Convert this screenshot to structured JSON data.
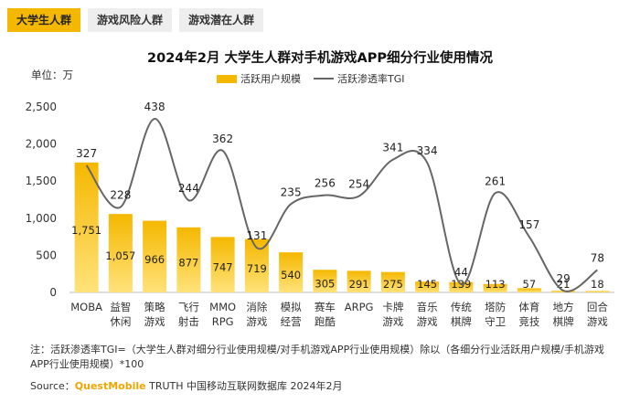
{
  "tabs": [
    {
      "label": "大学生人群",
      "active": true
    },
    {
      "label": "游戏风险人群",
      "active": false
    },
    {
      "label": "游戏潜在人群",
      "active": false
    }
  ],
  "chart_data": {
    "type": "bar",
    "title": "2024年2月 大学生人群对手机游戏APP细分行业使用情况",
    "unit_label": "单位：万",
    "categories": [
      "MOBA",
      "益智\n休闲",
      "策略\n游戏",
      "飞行\n射击",
      "MMO\nRPG",
      "消除\n游戏",
      "模拟\n经营",
      "赛车\n跑酷",
      "ARPG",
      "卡牌\n游戏",
      "音乐\n游戏",
      "传统\n棋牌",
      "塔防\n守卫",
      "体育\n竞技",
      "地方\n棋牌",
      "回合\n游戏"
    ],
    "series": [
      {
        "name": "活跃用户规模",
        "type": "bar",
        "color": "#f5b800",
        "values": [
          1751,
          1057,
          966,
          877,
          747,
          719,
          540,
          305,
          291,
          275,
          145,
          139,
          113,
          57,
          21,
          18
        ]
      },
      {
        "name": "活跃渗透率TGI",
        "type": "line",
        "color": "#666666",
        "values": [
          327,
          228,
          438,
          244,
          362,
          131,
          235,
          256,
          254,
          341,
          334,
          44,
          261,
          157,
          29,
          78
        ]
      }
    ],
    "y_ticks": [
      "0",
      "500",
      "1,000",
      "1,500",
      "2,000",
      "2,500"
    ],
    "ylim": [
      0,
      2500
    ],
    "bar_labels": [
      "1,751",
      "1,057",
      "966",
      "877",
      "747",
      "719",
      "540",
      "305",
      "291",
      "275",
      "145",
      "139",
      "113",
      "57",
      "21",
      "18"
    ],
    "line_labels": [
      "327",
      "228",
      "438",
      "244",
      "362",
      "131",
      "235",
      "256",
      "254",
      "341",
      "334",
      "44",
      "261",
      "157",
      "29",
      "78"
    ],
    "legend_position": "top-center",
    "grid": false
  },
  "note": "注：活跃渗透率TGI=（大学生人群对细分行业使用规模/对手机游戏APP行业使用规模）除以（各细分行业活跃用户规模/手机游戏APP行业使用规模）*100",
  "source": {
    "prefix": "Source：",
    "brand": "QuestMobile",
    "suffix": " TRUTH 中国移动互联网数据库 2024年2月"
  },
  "colors": {
    "accent": "#f5b800",
    "line": "#666666"
  }
}
